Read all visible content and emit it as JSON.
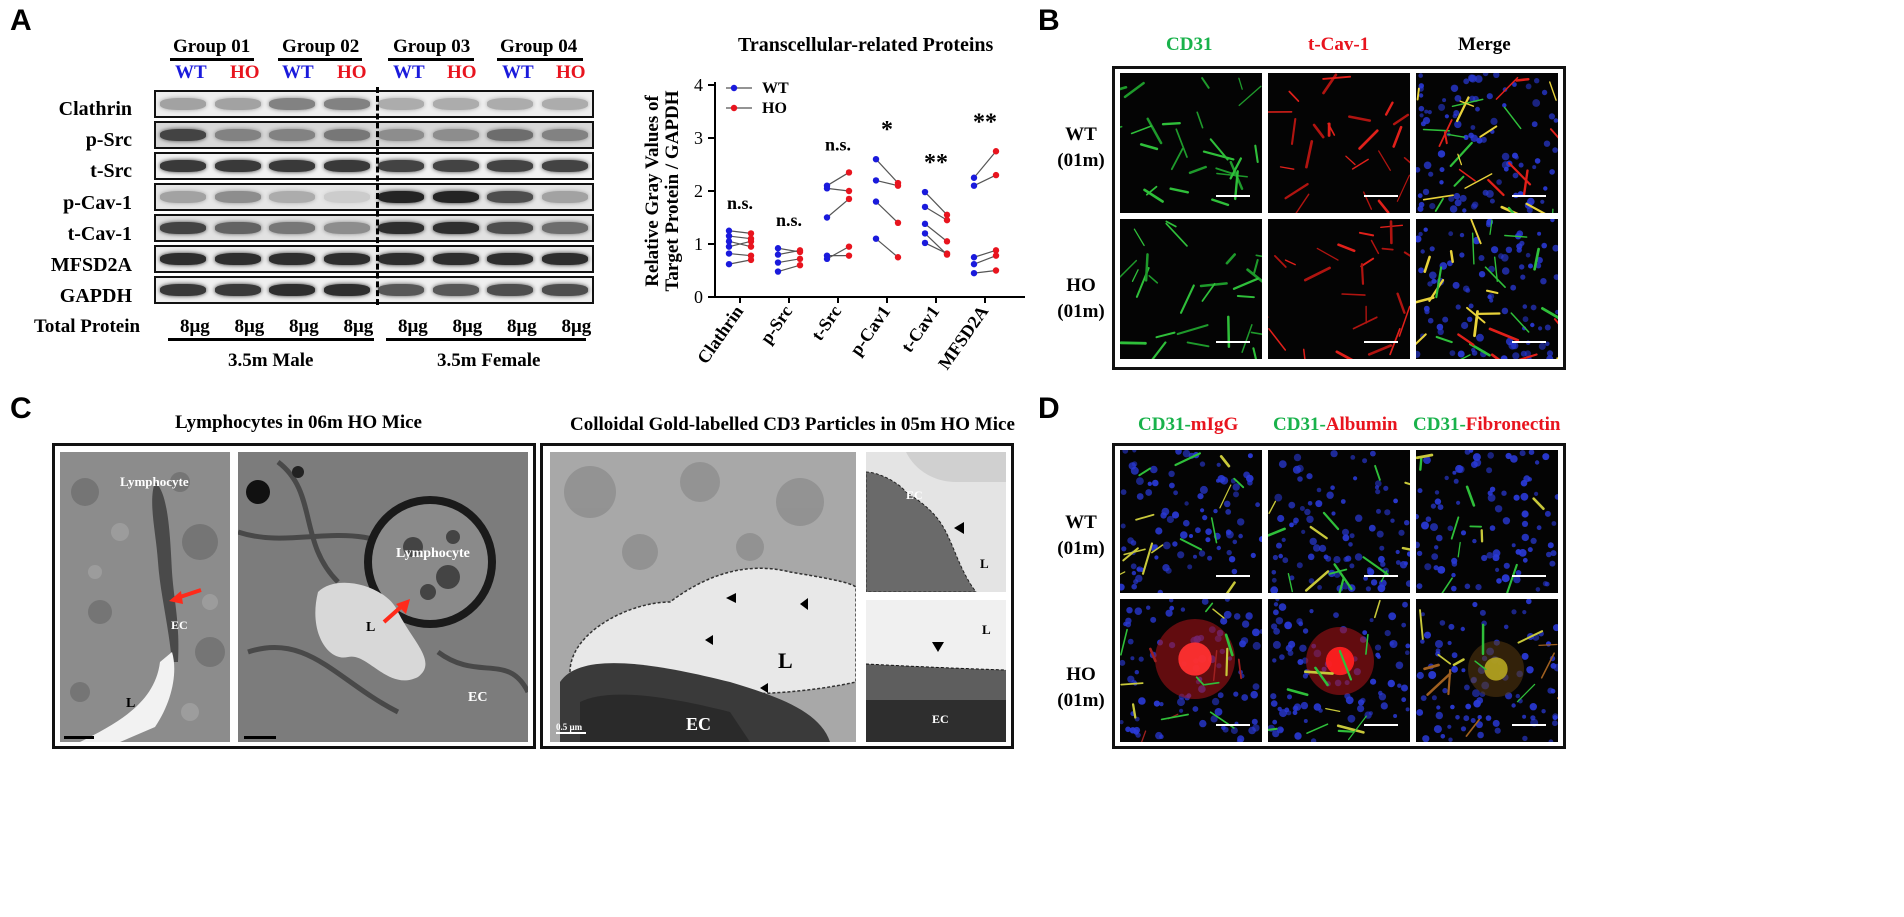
{
  "panels": {
    "A": "A",
    "B": "B",
    "C": "C",
    "D": "D"
  },
  "panelA": {
    "groups": [
      "Group 01",
      "Group 02",
      "Group 03",
      "Group 04"
    ],
    "genotypes": [
      "WT",
      "HO",
      "WT",
      "HO",
      "WT",
      "HO",
      "WT",
      "HO"
    ],
    "rows": [
      "Clathrin",
      "p-Src",
      "t-Src",
      "p-Cav-1",
      "t-Cav-1",
      "MFSD2A",
      "GAPDH"
    ],
    "total_protein_label": "Total Protein",
    "loads": [
      "8μg",
      "8μg",
      "8μg",
      "8μg",
      "8μg",
      "8μg",
      "8μg",
      "8μg"
    ],
    "cohort_male": "3.5m Male",
    "cohort_female": "3.5m Female"
  },
  "chart_data": {
    "type": "scatter",
    "title": "Transcellular-related Proteins",
    "ylabel": "Relative Gray Values of\nTarget Protein / GAPDH",
    "ylim": [
      0,
      4
    ],
    "yticks": [
      "0",
      "1",
      "2",
      "3",
      "4"
    ],
    "categories": [
      "Clathrin",
      "p-Src",
      "t-Src",
      "p-Cav1",
      "t-Cav1",
      "MFSD2A"
    ],
    "legend": {
      "placement": "top-left",
      "entries": [
        "WT",
        "HO"
      ]
    },
    "significance": [
      "n.s.",
      "n.s.",
      "n.s.",
      "*",
      "**",
      "**"
    ],
    "colors": {
      "WT": "#1a1adc",
      "HO": "#e8141e"
    },
    "pairs": [
      [
        [
          1.25,
          1.2
        ],
        [
          1.15,
          1.1
        ],
        [
          1.05,
          0.95
        ],
        [
          0.95,
          1.05
        ],
        [
          0.82,
          0.78
        ],
        [
          0.62,
          0.7
        ]
      ],
      [
        [
          0.92,
          0.85
        ],
        [
          0.8,
          0.88
        ],
        [
          0.65,
          0.72
        ],
        [
          0.48,
          0.6
        ]
      ],
      [
        [
          2.1,
          2.35
        ],
        [
          2.05,
          2.0
        ],
        [
          1.5,
          1.85
        ],
        [
          0.72,
          0.95
        ],
        [
          0.78,
          0.78
        ]
      ],
      [
        [
          2.6,
          2.15
        ],
        [
          2.2,
          2.1
        ],
        [
          1.8,
          1.4
        ],
        [
          1.1,
          0.75
        ]
      ],
      [
        [
          1.98,
          1.55
        ],
        [
          1.7,
          1.45
        ],
        [
          1.38,
          1.05
        ],
        [
          1.02,
          0.82
        ],
        [
          1.2,
          0.8
        ]
      ],
      [
        [
          2.25,
          2.75
        ],
        [
          2.1,
          2.3
        ],
        [
          0.75,
          0.88
        ],
        [
          0.62,
          0.78
        ],
        [
          0.45,
          0.5
        ]
      ]
    ]
  },
  "panelB": {
    "channels": [
      "CD31",
      "t-Cav-1",
      "Merge"
    ],
    "rows": [
      {
        "g": "WT",
        "t": "(01m)"
      },
      {
        "g": "HO",
        "t": "(01m)"
      }
    ]
  },
  "panelC": {
    "title_left": "Lymphocytes in 06m HO Mice",
    "title_right": "Colloidal Gold-labelled CD3 Particles in 05m HO Mice",
    "labels": {
      "lymphocyte": "Lymphocyte",
      "ec": "EC",
      "l": "L",
      "scale": "0.5 μm"
    }
  },
  "panelD": {
    "ch1": "CD31-",
    "ch1b": "mIgG",
    "ch2": "CD31-",
    "ch2b": "Albumin",
    "ch3": "CD31-",
    "ch3b": "Fibronectin",
    "rows": [
      {
        "g": "WT",
        "t": "(01m)"
      },
      {
        "g": "HO",
        "t": "(01m)"
      }
    ]
  }
}
